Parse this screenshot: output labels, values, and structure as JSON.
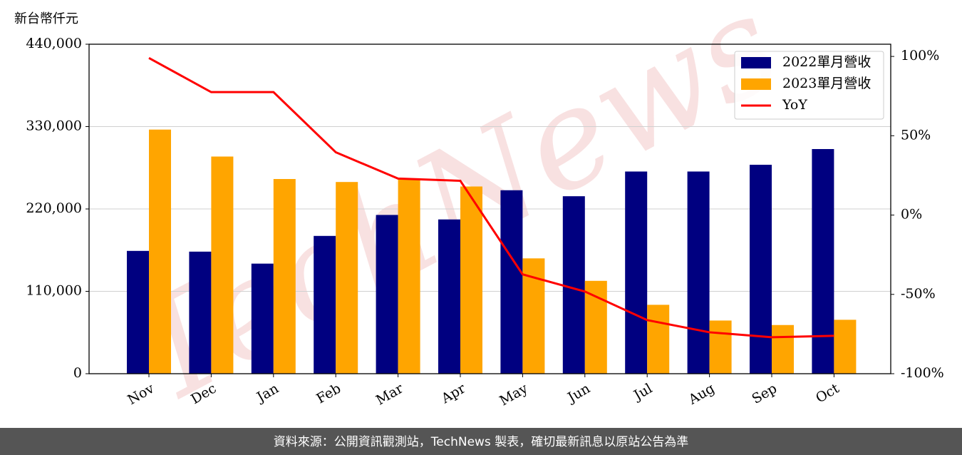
{
  "chart_data": {
    "type": "bar",
    "y_label": "新台幣仟元",
    "watermark": "TechNews",
    "footer": "資料來源：公開資訊觀測站，TechNews 製表，確切最新訊息以原站公告為準",
    "categories": [
      "Nov",
      "Dec",
      "Jan",
      "Feb",
      "Mar",
      "Apr",
      "May",
      "Jun",
      "Jul",
      "Aug",
      "Sep",
      "Oct"
    ],
    "series": [
      {
        "name": "2022單月營收",
        "color": "#000080",
        "type": "bar",
        "values": [
          164000,
          163000,
          147000,
          184000,
          212000,
          206000,
          245000,
          237000,
          270000,
          270000,
          279000,
          300000
        ]
      },
      {
        "name": "2023單月營收",
        "color": "#ffa500",
        "type": "bar",
        "values": [
          326000,
          290000,
          260000,
          256000,
          261000,
          250000,
          154000,
          124000,
          92000,
          71000,
          65000,
          72000
        ]
      },
      {
        "name": "YoY",
        "color": "#ff0000",
        "type": "line",
        "axis": "y2",
        "values": [
          99,
          77.5,
          77.5,
          39.6,
          23,
          21.6,
          -37.4,
          -48.2,
          -66.2,
          -73.9,
          -77,
          -76.1
        ]
      }
    ],
    "ylim": [
      0,
      440000
    ],
    "yticks": [
      0,
      {
        "value": 110000,
        "label": "110,000"
      },
      {
        "value": 220000,
        "label": "220,000"
      },
      {
        "value": 330000,
        "label": "330,000"
      },
      {
        "value": 440000,
        "label": "440,000"
      }
    ],
    "y2lim": [
      -100,
      107.7
    ],
    "y2ticks": [
      {
        "value": -100,
        "label": "-100%"
      },
      {
        "value": -50,
        "label": "-50%"
      },
      {
        "value": 0,
        "label": "0%"
      },
      {
        "value": 50,
        "label": "50%"
      },
      {
        "value": 100,
        "label": "100%"
      }
    ],
    "grid": true,
    "legend": "upper right"
  }
}
